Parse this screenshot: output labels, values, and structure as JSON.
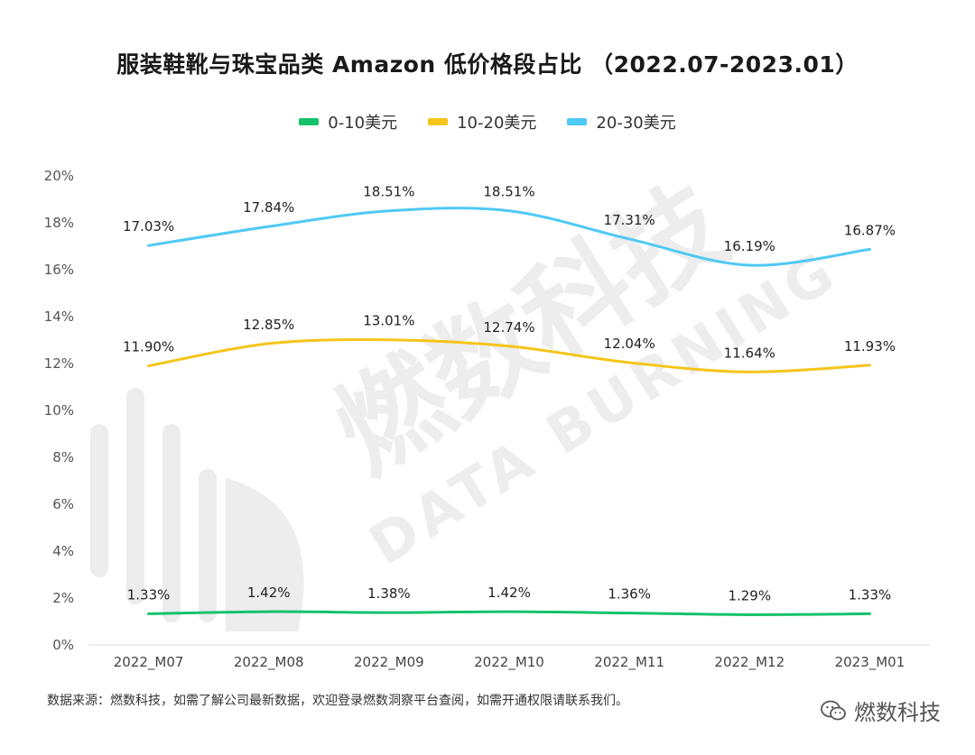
{
  "title": "服装鞋靴与珠宝品类 Amazon 低价格段占比 （2022.07-2023.01）",
  "footer": {
    "source_note": "数据来源：燃数科技，如需了解公司最新数据，欢迎登录燃数洞察平台查阅，如需开通权限请联系我们。",
    "brand_name": "燃数科技"
  },
  "watermark": {
    "line1": "燃数科技",
    "line2": "DATA BURNING"
  },
  "chart_data": {
    "type": "line",
    "title": "服装鞋靴与珠宝品类 Amazon 低价格段占比 （2022.07-2023.01）",
    "categories": [
      "2022_M07",
      "2022_M08",
      "2022_M09",
      "2022_M10",
      "2022_M11",
      "2022_M12",
      "2023_M01"
    ],
    "y_ticks": [
      "0%",
      "2%",
      "4%",
      "6%",
      "8%",
      "10%",
      "12%",
      "14%",
      "16%",
      "18%",
      "20%"
    ],
    "ylim": [
      0,
      20
    ],
    "xlabel": "",
    "ylabel": "",
    "grid": false,
    "legend_position": "top-center",
    "series": [
      {
        "name": "0-10美元",
        "color": "#13c26b",
        "values": [
          1.33,
          1.42,
          1.38,
          1.42,
          1.36,
          1.29,
          1.33
        ],
        "labels": [
          "1.33%",
          "1.42%",
          "1.38%",
          "1.42%",
          "1.36%",
          "1.29%",
          "1.33%"
        ]
      },
      {
        "name": "10-20美元",
        "color": "#f5c518",
        "values": [
          11.9,
          12.85,
          13.01,
          12.74,
          12.04,
          11.64,
          11.93
        ],
        "labels": [
          "11.90%",
          "12.85%",
          "13.01%",
          "12.74%",
          "12.04%",
          "11.64%",
          "11.93%"
        ]
      },
      {
        "name": "20-30美元",
        "color": "#4fc9f5",
        "values": [
          17.03,
          17.84,
          18.51,
          18.51,
          17.31,
          16.19,
          16.87
        ],
        "labels": [
          "17.03%",
          "17.84%",
          "18.51%",
          "18.51%",
          "17.31%",
          "16.19%",
          "16.87%"
        ]
      }
    ]
  }
}
